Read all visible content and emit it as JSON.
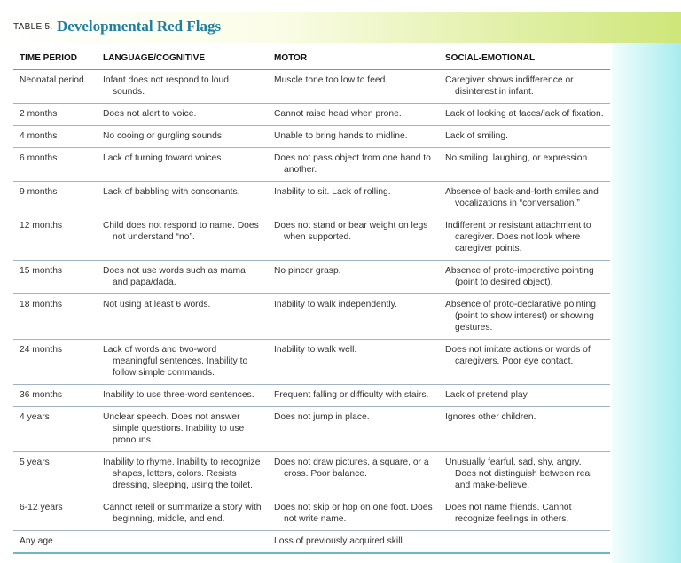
{
  "header": {
    "label": "TABLE 5.",
    "title": "Developmental Red Flags"
  },
  "table": {
    "columns": [
      "TIME PERIOD",
      "LANGUAGE/COGNITIVE",
      "MOTOR",
      "SOCIAL-EMOTIONAL"
    ],
    "rows": [
      [
        "Neonatal period",
        "Infant does not respond to loud sounds.",
        "Muscle tone too low to feed.",
        "Caregiver shows indifference or disinterest in infant."
      ],
      [
        "2 months",
        "Does not alert to voice.",
        "Cannot raise head when prone.",
        "Lack of looking at faces/lack of fixation."
      ],
      [
        "4 months",
        "No cooing or gurgling sounds.",
        "Unable to bring hands to midline.",
        "Lack of smiling."
      ],
      [
        "6 months",
        "Lack of turning toward voices.",
        "Does not pass object from one hand to another.",
        "No smiling, laughing, or expression."
      ],
      [
        "9 months",
        "Lack of babbling with consonants.",
        "Inability to sit. Lack of rolling.",
        "Absence of back-and-forth smiles and vocalizations in “conversation.”"
      ],
      [
        "12 months",
        "Child does not respond to name. Does not understand “no”.",
        "Does not stand or bear weight on legs when supported.",
        "Indifferent or resistant attachment to caregiver. Does not look where caregiver points."
      ],
      [
        "15 months",
        "Does not use words such as mama and papa/dada.",
        "No pincer grasp.",
        "Absence of proto-imperative pointing (point to desired object)."
      ],
      [
        "18 months",
        "Not using at least 6 words.",
        "Inability to walk independently.",
        "Absence of proto-declarative pointing (point to show interest) or showing gestures."
      ],
      [
        "24 months",
        "Lack of words and two-word meaningful sentences. Inability to follow simple commands.",
        "Inability to walk well.",
        "Does not imitate actions or words of caregivers. Poor eye contact."
      ],
      [
        "36 months",
        "Inability to use three-word sentences.",
        "Frequent falling or difficulty with stairs.",
        "Lack of pretend play."
      ],
      [
        "4 years",
        "Unclear speech. Does not answer simple questions. Inability to use pronouns.",
        "Does not jump in place.",
        "Ignores other children."
      ],
      [
        "5 years",
        "Inability to rhyme. Inability to recognize shapes, letters, colors. Resists dressing, sleeping, using the toilet.",
        "Does not draw pictures, a square, or a cross. Poor balance.",
        "Unusually fearful, sad, shy, angry. Does not distinguish between real and make-believe."
      ],
      [
        "6-12 years",
        "Cannot retell or summarize a story with beginning, middle, and end.",
        "Does not skip or hop on one foot. Does not write name.",
        "Does not name friends. Cannot recognize feelings in others."
      ],
      [
        "Any age",
        null,
        "Loss of previously acquired skill.",
        null
      ]
    ]
  }
}
